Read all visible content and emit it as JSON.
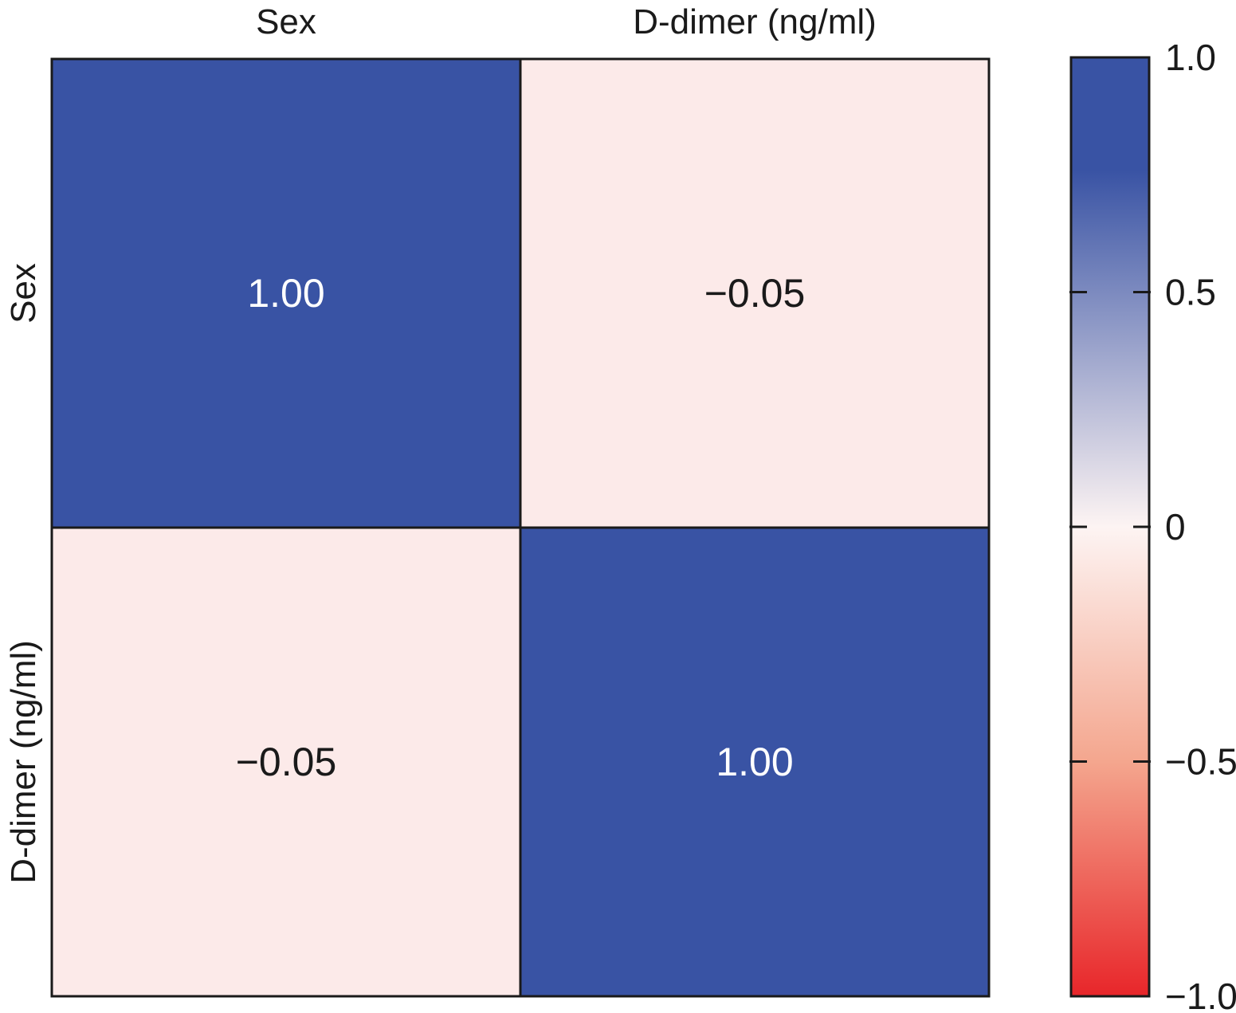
{
  "chart_data": {
    "type": "heatmap",
    "x_labels": [
      "Sex",
      "D-dimer (ng/ml)"
    ],
    "y_labels": [
      "Sex",
      "D-dimer (ng/ml)"
    ],
    "values": [
      [
        1.0,
        -0.05
      ],
      [
        -0.05,
        1.0
      ]
    ],
    "cell_text": [
      [
        "1.00",
        "−0.05"
      ],
      [
        "−0.05",
        "1.00"
      ]
    ],
    "colorbar": {
      "range": [
        -1.0,
        1.0
      ],
      "ticks": [
        1.0,
        0.5,
        0,
        -0.5,
        -1.0
      ],
      "tick_labels": [
        "1.0",
        "0.5",
        "0",
        "−0.5",
        "−1.0"
      ],
      "colors": {
        "negative": "#e8262a",
        "neutral": "#fdf4f3",
        "positive": "#3953a4"
      }
    }
  }
}
